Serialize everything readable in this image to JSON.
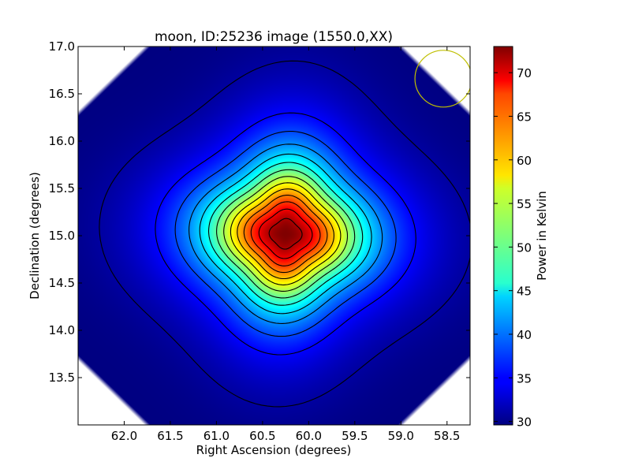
{
  "chart_data": {
    "type": "heatmap",
    "title": "moon, ID:25236 image (1550.0,XX)",
    "xlabel": "Right Ascension (degrees)",
    "ylabel": "Declination (degrees)",
    "xlim": [
      62.5,
      58.25
    ],
    "ylim": [
      13.0,
      17.0
    ],
    "x_ticks": [
      62.0,
      61.5,
      61.0,
      60.5,
      60.0,
      59.5,
      59.0,
      58.5
    ],
    "x_tick_labels": [
      "62.0",
      "61.5",
      "61.0",
      "60.5",
      "60.0",
      "59.5",
      "59.0",
      "58.5"
    ],
    "y_ticks": [
      13.5,
      14.0,
      14.5,
      15.0,
      15.5,
      16.0,
      16.5,
      17.0
    ],
    "y_tick_labels": [
      "13.5",
      "14.0",
      "14.5",
      "15.0",
      "15.5",
      "16.0",
      "16.5",
      "17.0"
    ],
    "colorbar": {
      "label": "Power in Kelvin",
      "range": [
        29.6,
        73
      ],
      "ticks": [
        30,
        35,
        40,
        45,
        50,
        55,
        60,
        65,
        70
      ],
      "tick_labels": [
        "30",
        "35",
        "40",
        "45",
        "50",
        "55",
        "60",
        "65",
        "70"
      ],
      "colormap": "jet"
    },
    "source": {
      "center_ra": 60.25,
      "center_dec": 15.02,
      "peak_kelvin": 73,
      "background_kelvin": 29.6
    },
    "contour_levels": [
      31,
      35,
      38,
      41,
      44,
      47,
      50,
      53,
      56,
      59,
      62,
      65,
      68,
      71
    ],
    "beam_circle": {
      "ra": 58.54,
      "dec": 16.66,
      "radius_deg": 0.3,
      "color": "#bfbf00"
    },
    "grid": false,
    "legend": "none"
  }
}
